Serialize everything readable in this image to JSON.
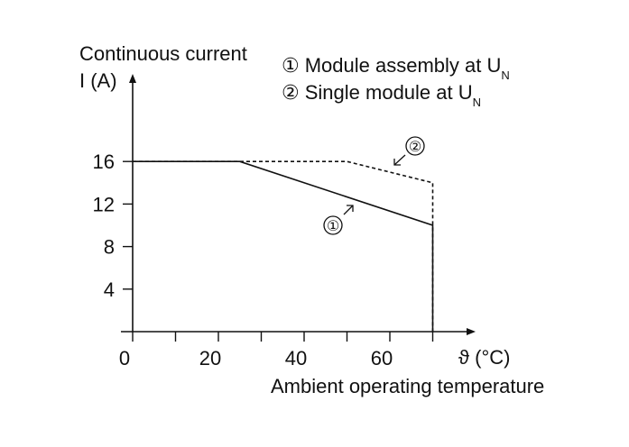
{
  "chart_data": {
    "type": "line",
    "ylabel_line1": "Continuous current",
    "ylabel_line2": "I (A)",
    "xlabel": "Ambient operating temperature",
    "x_unit": "ϑ (°C)",
    "xlim": [
      0,
      80
    ],
    "ylim": [
      0,
      20
    ],
    "x_ticks": [
      0,
      20,
      40,
      60
    ],
    "x_minor_ticks": [
      10,
      30,
      50,
      70
    ],
    "y_ticks": [
      4,
      8,
      12,
      16
    ],
    "grid": false,
    "legend": [
      {
        "marker": "①",
        "text": "Module assembly at U",
        "sub": "N"
      },
      {
        "marker": "②",
        "text": "Single module at U",
        "sub": "N"
      }
    ],
    "series": [
      {
        "marker": "①",
        "style": "solid",
        "color": "#111111",
        "x": [
          0,
          25,
          70,
          70
        ],
        "y": [
          16,
          16,
          10,
          0
        ]
      },
      {
        "marker": "②",
        "style": "dashed",
        "color": "#111111",
        "x": [
          0,
          50,
          70,
          70
        ],
        "y": [
          16,
          16,
          14,
          0
        ]
      }
    ],
    "annotations": [
      {
        "label": "①",
        "x": 48,
        "y": 9.8
      },
      {
        "label": "②",
        "x": 68,
        "y": 17.2
      }
    ]
  }
}
